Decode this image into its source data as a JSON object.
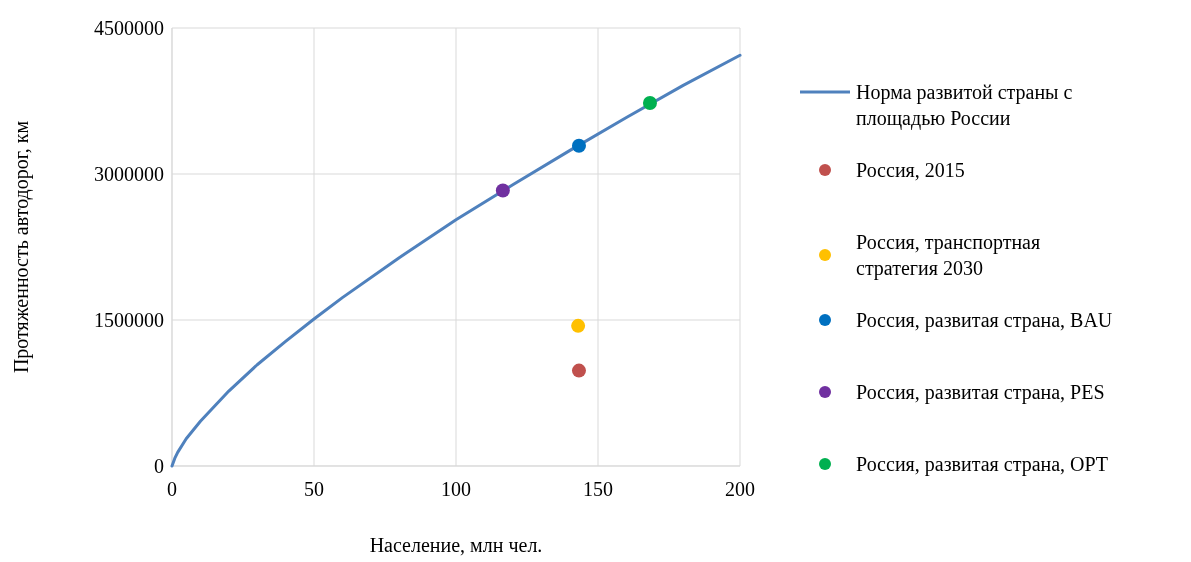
{
  "chart_data": {
    "type": "scatter",
    "xlabel": "Население, млн чел.",
    "ylabel": "Протяженность автодорог, км",
    "xlim": [
      0,
      200
    ],
    "xticks": [
      0,
      50,
      100,
      150,
      200
    ],
    "ylim": [
      0,
      4500000
    ],
    "yticks": [
      0,
      1500000,
      3000000,
      4500000
    ],
    "grid": true,
    "legend": "right",
    "series": [
      {
        "name": "Норма развитой страны с площадью России",
        "type": "line",
        "color": "#4f81bd",
        "x": [
          0,
          1,
          2,
          5,
          10,
          20,
          30,
          40,
          50,
          60,
          80,
          100,
          120,
          140,
          160,
          180,
          200
        ],
        "values": [
          0,
          80000,
          140000,
          280000,
          460000,
          770000,
          1040000,
          1280000,
          1510000,
          1730000,
          2140000,
          2530000,
          2890000,
          3240000,
          3580000,
          3910000,
          4220000
        ]
      },
      {
        "name": "Россия, 2015",
        "marker": "circle",
        "color": "#c0504d",
        "x": [
          143.3
        ],
        "values": [
          980000
        ]
      },
      {
        "name": "Россия, транспортная стратегия 2030",
        "marker": "circle",
        "color": "#ffc000",
        "x": [
          143
        ],
        "values": [
          1440000
        ]
      },
      {
        "name": "Россия, развитая страна, BAU",
        "marker": "circle",
        "color": "#0070c0",
        "x": [
          143.3
        ],
        "values": [
          3290000
        ]
      },
      {
        "name": "Россия, развитая страна, PES",
        "marker": "circle",
        "color": "#7030a0",
        "x": [
          116.5
        ],
        "values": [
          2830000
        ]
      },
      {
        "name": "Россия, развитая страна, OPT",
        "marker": "circle",
        "color": "#00b050",
        "x": [
          168.3
        ],
        "values": [
          3730000
        ]
      }
    ]
  }
}
